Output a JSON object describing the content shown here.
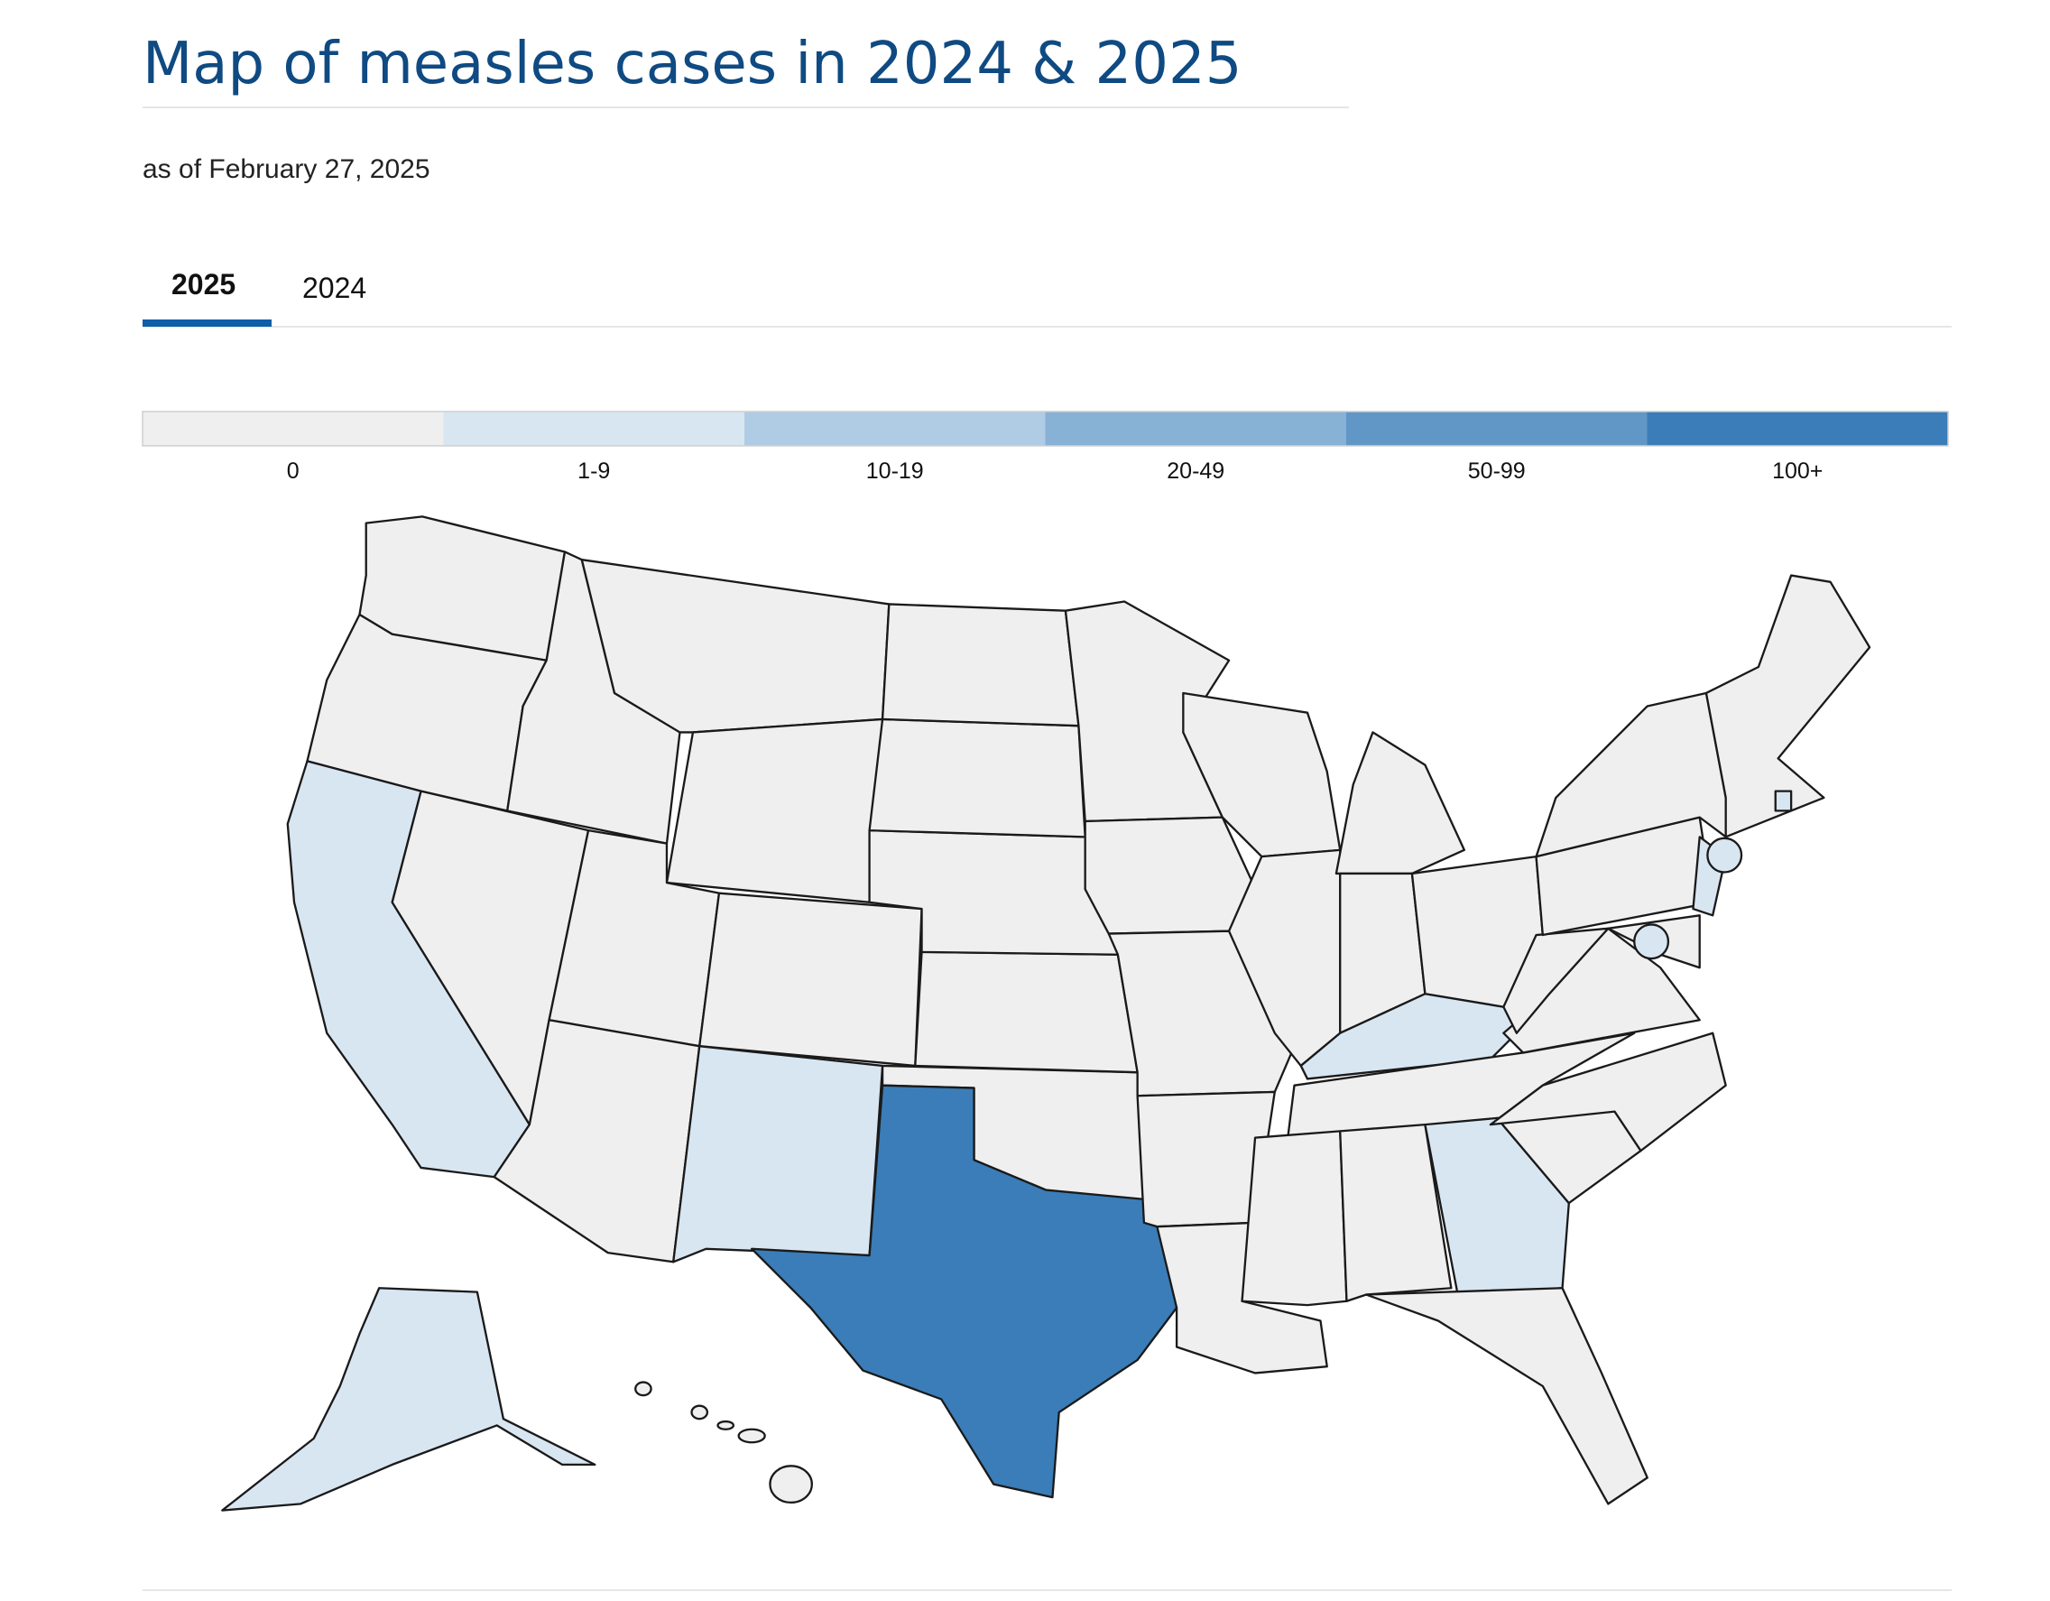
{
  "header": {
    "title": "Map of measles cases in 2024 & 2025",
    "subtitle": "as of February 27, 2025"
  },
  "tabs": [
    {
      "label": "2025",
      "active": true
    },
    {
      "label": "2024",
      "active": false
    }
  ],
  "legend": {
    "items": [
      {
        "label": "0",
        "color": "#efefef"
      },
      {
        "label": "1-9",
        "color": "#d8e6f2"
      },
      {
        "label": "10-19",
        "color": "#b0cce4"
      },
      {
        "label": "20-49",
        "color": "#87b1d5"
      },
      {
        "label": "50-99",
        "color": "#6097c7"
      },
      {
        "label": "100+",
        "color": "#3a7db8"
      }
    ]
  }
}
